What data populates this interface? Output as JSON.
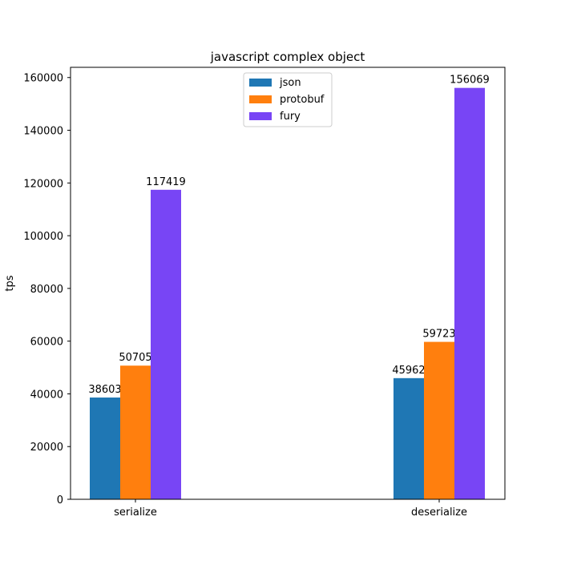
{
  "chart_data": {
    "type": "bar",
    "title": "javascript complex object",
    "xlabel": "",
    "ylabel": "tps",
    "categories": [
      "serialize",
      "deserialize"
    ],
    "series": [
      {
        "name": "json",
        "color": "#1f77b4",
        "values": [
          38603,
          45962
        ]
      },
      {
        "name": "protobuf",
        "color": "#ff7f0e",
        "values": [
          50705,
          59723
        ]
      },
      {
        "name": "fury",
        "color": "#7845f5",
        "values": [
          117419,
          156069
        ]
      }
    ],
    "ylim": [
      0,
      163876
    ],
    "yticks": [
      0,
      20000,
      40000,
      60000,
      80000,
      100000,
      120000,
      140000,
      160000
    ],
    "legend_position": "top-center",
    "grid": false
  }
}
